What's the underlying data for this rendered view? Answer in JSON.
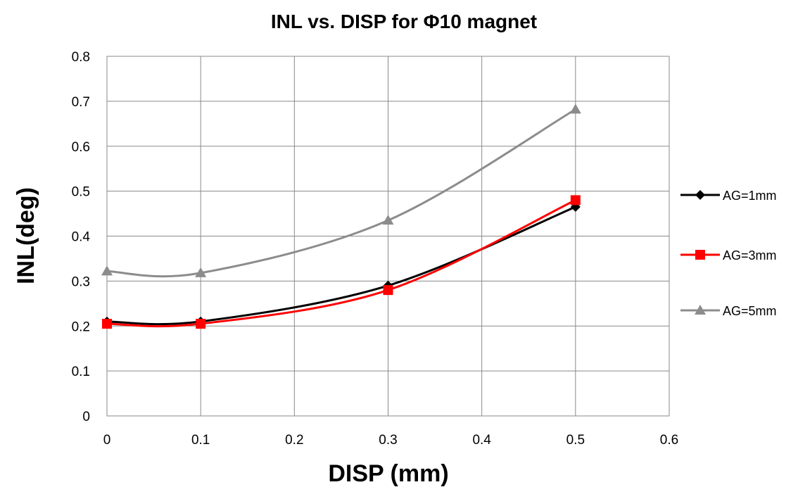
{
  "chart_data": {
    "type": "line",
    "title": "INL vs. DISP for Φ10 magnet",
    "xlabel": "DISP (mm)",
    "ylabel": "INL(deg)",
    "xlim": [
      0,
      0.6
    ],
    "ylim": [
      0,
      0.8
    ],
    "x_ticks": [
      "0",
      "0.1",
      "0.2",
      "0.3",
      "0.4",
      "0.5",
      "0.6"
    ],
    "y_ticks": [
      "0",
      "0.1",
      "0.2",
      "0.3",
      "0.4",
      "0.5",
      "0.6",
      "0.7",
      "0.8"
    ],
    "grid": true,
    "smooth": true,
    "legend_position": "right",
    "series": [
      {
        "name": "AG=1mm",
        "color": "#000000",
        "marker": "diamond",
        "x": [
          0,
          0.1,
          0.3,
          0.5
        ],
        "y": [
          0.21,
          0.21,
          0.29,
          0.465
        ]
      },
      {
        "name": "AG=3mm",
        "color": "#ff0000",
        "marker": "square",
        "x": [
          0,
          0.1,
          0.3,
          0.5
        ],
        "y": [
          0.205,
          0.205,
          0.28,
          0.48
        ]
      },
      {
        "name": "AG=5mm",
        "color": "#8c8c8c",
        "marker": "triangle",
        "x": [
          0,
          0.1,
          0.3,
          0.5
        ],
        "y": [
          0.322,
          0.318,
          0.435,
          0.682
        ]
      }
    ]
  }
}
